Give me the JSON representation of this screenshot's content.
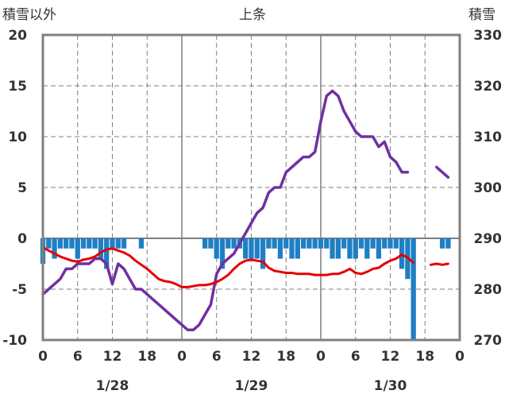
{
  "chart_data": {
    "type": "line",
    "title": "上条",
    "y_left_label": "積雪以外",
    "y_right_label": "積雪",
    "y_left_ticks": [
      "20",
      "15",
      "10",
      "5",
      "0",
      "-5",
      "-10"
    ],
    "y_right_ticks": [
      "330",
      "320",
      "310",
      "300",
      "290",
      "280",
      "270"
    ],
    "x_ticks": [
      "0",
      "6",
      "12",
      "18",
      "0",
      "6",
      "12",
      "18",
      "0",
      "6",
      "12",
      "18",
      "0"
    ],
    "date_labels": [
      "1/28",
      "1/29",
      "1/30"
    ],
    "ylim_left": [
      -10,
      20
    ],
    "ylim_right": [
      270,
      330
    ],
    "x_hours_range": [
      0,
      72
    ],
    "grid": true,
    "colors": {
      "snow_depth": "#7030A0",
      "temperature": "#E60000",
      "precipitation": "#1F7FC4",
      "frame": "#808080",
      "grid": "#7F7F7F"
    },
    "series": [
      {
        "key": "snow_depth",
        "axis": "right",
        "x": [
          0,
          1,
          2,
          3,
          4,
          5,
          6,
          7,
          8,
          9,
          10,
          11,
          12,
          13,
          14,
          15,
          16,
          17,
          18,
          19,
          20,
          21,
          22,
          23,
          24,
          25,
          26,
          27,
          28,
          29,
          30,
          31,
          32,
          33,
          34,
          35,
          36,
          37,
          38,
          39,
          40,
          41,
          42,
          43,
          44,
          45,
          46,
          47,
          48,
          49,
          50,
          51,
          52,
          53,
          54,
          55,
          56,
          57,
          58,
          59,
          60,
          61,
          62,
          63,
          64,
          65,
          66,
          67,
          68,
          69,
          70
        ],
        "values": [
          279,
          280,
          281,
          282,
          284,
          284,
          285,
          285,
          285,
          286,
          286,
          285,
          281,
          285,
          284,
          282,
          280,
          280,
          279,
          278,
          277,
          276,
          275,
          274,
          273,
          272,
          272,
          273,
          275,
          277,
          283,
          285,
          286,
          287,
          289,
          291,
          293,
          295,
          296,
          299,
          300,
          300,
          303,
          304,
          305,
          306,
          306,
          307,
          313,
          318,
          319,
          318,
          315,
          313,
          311,
          310,
          310,
          310,
          308,
          309,
          306,
          305,
          303,
          303,
          null,
          null,
          null,
          null,
          304,
          303,
          302
        ]
      },
      {
        "key": "temperature",
        "axis": "left",
        "x": [
          0,
          1,
          2,
          3,
          4,
          5,
          6,
          7,
          8,
          9,
          10,
          11,
          12,
          13,
          14,
          15,
          16,
          17,
          18,
          19,
          20,
          21,
          22,
          23,
          24,
          25,
          26,
          27,
          28,
          29,
          30,
          31,
          32,
          33,
          34,
          35,
          36,
          37,
          38,
          39,
          40,
          41,
          42,
          43,
          44,
          45,
          46,
          47,
          48,
          49,
          50,
          51,
          52,
          53,
          54,
          55,
          56,
          57,
          58,
          59,
          60,
          61,
          62,
          63,
          64,
          65,
          66,
          67,
          68,
          69,
          70
        ],
        "values": [
          -0.9,
          -1.2,
          -1.5,
          -1.8,
          -2,
          -2.2,
          -2.3,
          -2.1,
          -2,
          -1.8,
          -1.4,
          -1.1,
          -1,
          -1.2,
          -1.4,
          -1.7,
          -2.2,
          -2.6,
          -3,
          -3.5,
          -4,
          -4.2,
          -4.3,
          -4.5,
          -4.8,
          -4.8,
          -4.7,
          -4.6,
          -4.6,
          -4.5,
          -4.3,
          -4,
          -3.6,
          -3,
          -2.5,
          -2.2,
          -2.1,
          -2.2,
          -2.3,
          -2.9,
          -3.2,
          -3.3,
          -3.4,
          -3.4,
          -3.5,
          -3.5,
          -3.5,
          -3.6,
          -3.6,
          -3.6,
          -3.5,
          -3.5,
          -3.3,
          -3,
          -3.4,
          -3.5,
          -3.3,
          -3,
          -2.9,
          -2.5,
          -2.2,
          -2,
          -1.6,
          -1.9,
          -2.4,
          null,
          null,
          -2.6,
          -2.5,
          -2.6,
          -2.5
        ]
      },
      {
        "key": "precipitation",
        "axis": "left",
        "style": "bar",
        "x": [
          0,
          1,
          2,
          3,
          4,
          5,
          6,
          7,
          8,
          9,
          10,
          11,
          12,
          13,
          14,
          15,
          16,
          17,
          18,
          19,
          20,
          21,
          22,
          23,
          24,
          25,
          26,
          27,
          28,
          29,
          30,
          31,
          32,
          33,
          34,
          35,
          36,
          37,
          38,
          39,
          40,
          41,
          42,
          43,
          44,
          45,
          46,
          47,
          48,
          49,
          50,
          51,
          52,
          53,
          54,
          55,
          56,
          57,
          58,
          59,
          60,
          61,
          62,
          63,
          64,
          65,
          66,
          67,
          68,
          69,
          70
        ],
        "values": [
          -2.5,
          -1,
          -2,
          -1,
          -1,
          -1,
          -2,
          -1,
          -1,
          -1,
          -2,
          -3,
          -1,
          -1,
          -1,
          0,
          0,
          -1,
          0,
          0,
          0,
          0,
          0,
          0,
          0,
          0,
          0,
          0,
          -1,
          -1,
          -2,
          -3,
          -1,
          -1,
          -1,
          -2,
          -2,
          -2,
          -3,
          -1,
          -1,
          -2,
          -1,
          -2,
          -2,
          -1,
          -1,
          -1,
          -1,
          -1,
          -2,
          -2,
          -1,
          -2,
          -2,
          -1,
          -2,
          -1,
          -2,
          -1,
          -1,
          -1,
          -3,
          -4,
          -10,
          0,
          0,
          0,
          0,
          -1,
          -1
        ]
      }
    ]
  }
}
